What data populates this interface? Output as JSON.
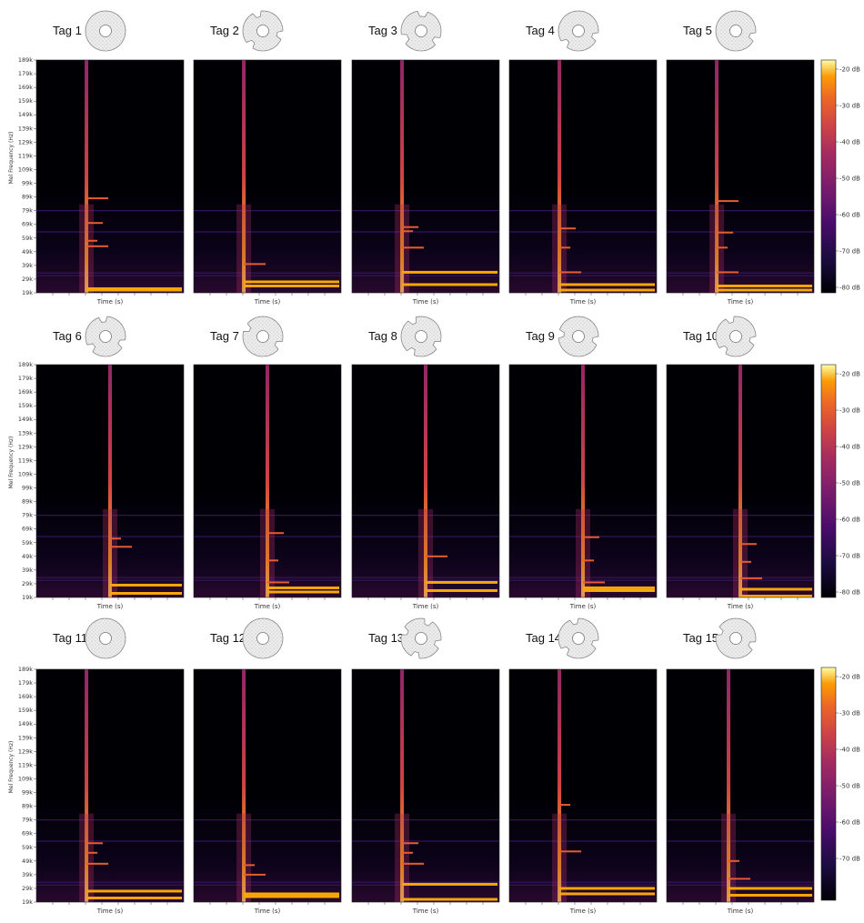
{
  "chart_data": {
    "type": "heatmap",
    "panel_grid": {
      "rows": 3,
      "cols": 5
    },
    "tags": [
      "Tag 1",
      "Tag 2",
      "Tag 3",
      "Tag 4",
      "Tag 5",
      "Tag 6",
      "Tag 7",
      "Tag 8",
      "Tag 9",
      "Tag 10",
      "Tag 11",
      "Tag 12",
      "Tag 13",
      "Tag 14",
      "Tag 15"
    ],
    "xlabel": "Time (s)",
    "ylabel": "Mel Frequency (Hz)",
    "y_ticks": [
      "19k",
      "29k",
      "39k",
      "49k",
      "59k",
      "69k",
      "79k",
      "89k",
      "99k",
      "109k",
      "119k",
      "129k",
      "139k",
      "149k",
      "159k",
      "169k",
      "179k",
      "189k"
    ],
    "y_tick_values": [
      19,
      29,
      39,
      49,
      59,
      69,
      79,
      89,
      99,
      109,
      119,
      129,
      139,
      149,
      159,
      169,
      179,
      189
    ],
    "colorbar": {
      "colormap": "inferno",
      "ticks_full": [
        "-20 dB",
        "-30 dB",
        "-40 dB",
        "-50 dB",
        "-60 dB",
        "-70 dB",
        "-80 dB"
      ],
      "ticks_last": [
        "-20 dB",
        "-30 dB",
        "-40 dB",
        "-50 dB",
        "-60 dB",
        "-70 dB"
      ]
    },
    "impulse_position_frac": [
      0.34,
      0.34,
      0.34,
      0.34,
      0.34,
      0.5,
      0.5,
      0.5,
      0.5,
      0.5,
      0.34,
      0.34,
      0.34,
      0.34,
      0.42
    ],
    "harmonic_lines_khz": [
      [
        21,
        22,
        53,
        57,
        70,
        88
      ],
      [
        24,
        27,
        40
      ],
      [
        25,
        34,
        52,
        64,
        67
      ],
      [
        21,
        25,
        34,
        52,
        66
      ],
      [
        21,
        24,
        34,
        52,
        63,
        86
      ],
      [
        22,
        28,
        56,
        62
      ],
      [
        23,
        26,
        30,
        46,
        66
      ],
      [
        24,
        30,
        49
      ],
      [
        24,
        26,
        30,
        46,
        63
      ],
      [
        20,
        25,
        33,
        45,
        58
      ],
      [
        22,
        27,
        47,
        55,
        62
      ],
      [
        23,
        25,
        39,
        46
      ],
      [
        21,
        32,
        47,
        55,
        62
      ],
      [
        25,
        29,
        56,
        90
      ],
      [
        24,
        29,
        36,
        49
      ]
    ],
    "colors": {
      "background": "#000004",
      "low": "#1b0c41",
      "mid": "#932667",
      "high": "#f8a706",
      "peak": "#fcffa4"
    }
  }
}
